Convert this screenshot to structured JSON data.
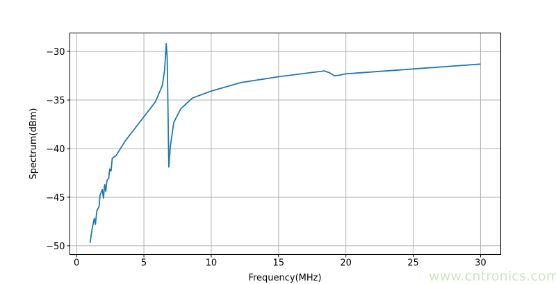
{
  "chart_data": {
    "type": "line",
    "title": "",
    "xlabel": "Frequency(MHz)",
    "ylabel": "Spectrum(dBm)",
    "xlim": [
      -0.5,
      31.5
    ],
    "ylim": [
      -50.9,
      -28.1
    ],
    "xticks": [
      0,
      5,
      10,
      15,
      20,
      25,
      30
    ],
    "yticks": [
      -30,
      -35,
      -40,
      -45,
      -50
    ],
    "xtick_labels": [
      "0",
      "5",
      "10",
      "15",
      "20",
      "25",
      "30"
    ],
    "ytick_labels": [
      "−30",
      "−35",
      "−40",
      "−45",
      "−50"
    ],
    "grid": true,
    "line_color": "#1f77b4",
    "series": [
      {
        "x": [
          1.0,
          1.16,
          1.31,
          1.4,
          1.5,
          1.67,
          1.74,
          1.91,
          2.0,
          2.08,
          2.17,
          2.25,
          2.39,
          2.46,
          2.56,
          2.65,
          2.94,
          3.62,
          4.57,
          5.85,
          6.37,
          6.54,
          6.66,
          6.73,
          6.78,
          6.85,
          6.97,
          7.22,
          7.74,
          8.6,
          9.96,
          12.2,
          15.0,
          18.4,
          18.8,
          19.15,
          19.5,
          20.0,
          25.0,
          30.0
        ],
        "y": [
          -49.7,
          -48.2,
          -47.2,
          -47.8,
          -46.4,
          -46.0,
          -44.8,
          -44.2,
          -45.1,
          -43.7,
          -44.4,
          -43.3,
          -43.05,
          -42.1,
          -42.3,
          -41.0,
          -40.7,
          -39.2,
          -37.5,
          -35.2,
          -33.5,
          -31.9,
          -29.2,
          -30.7,
          -35.4,
          -41.9,
          -39.7,
          -37.3,
          -35.9,
          -34.8,
          -34.1,
          -33.2,
          -32.6,
          -32.0,
          -32.2,
          -32.5,
          -32.45,
          -32.3,
          -31.8,
          -31.3
        ]
      }
    ]
  },
  "watermark": "www.cntronics.com"
}
